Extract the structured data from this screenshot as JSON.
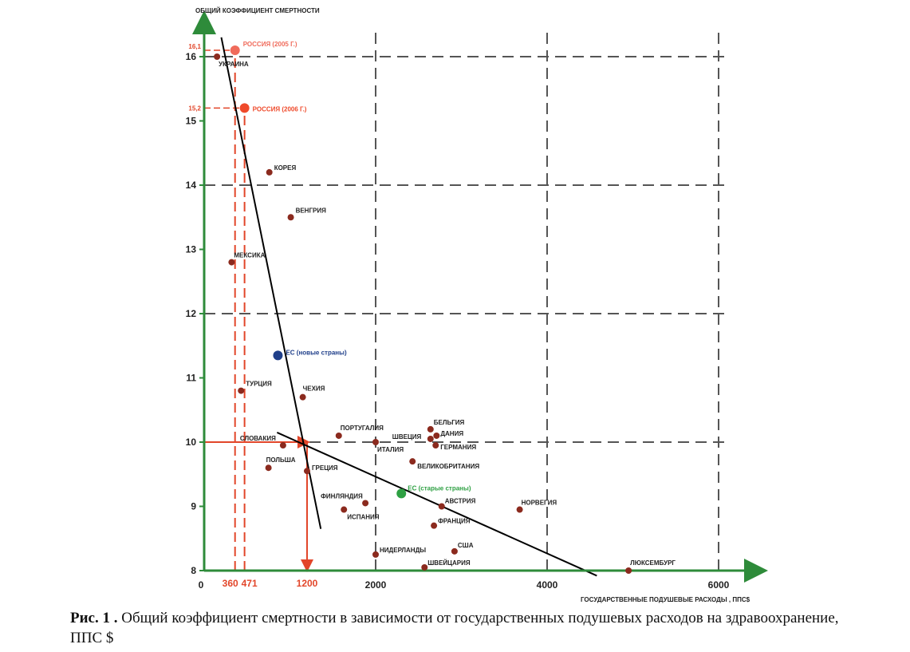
{
  "chart_data": {
    "type": "scatter",
    "ylabel": "ОБЩИЙ КОЭФФИЦИЕНТ СМЕРТНОСТИ",
    "xlabel": "ГОСУДАРСТВЕННЫЕ ПОДУШЕВЫЕ РАСХОДЫ , ППС$",
    "xlim": [
      0,
      6500
    ],
    "ylim": [
      8,
      16.5
    ],
    "x_ticks": [
      "0",
      "2000",
      "4000",
      "6000"
    ],
    "y_ticks": [
      "8",
      "9",
      "10",
      "11",
      "12",
      "13",
      "14",
      "15",
      "16"
    ],
    "grid": "dashed",
    "points": [
      {
        "label": "УКРАИНА",
        "x": 150,
        "y": 16.0
      },
      {
        "label": "КОРЕЯ",
        "x": 760,
        "y": 14.2
      },
      {
        "label": "ВЕНГРИЯ",
        "x": 1010,
        "y": 13.5
      },
      {
        "label": "МЕКСИКА",
        "x": 320,
        "y": 12.8
      },
      {
        "label": "ТУРЦИЯ",
        "x": 430,
        "y": 10.8
      },
      {
        "label": "ЧЕХИЯ",
        "x": 1150,
        "y": 10.7
      },
      {
        "label": "ПОРТУГАЛИЯ",
        "x": 1570,
        "y": 10.1
      },
      {
        "label": "ИТАЛИЯ",
        "x": 2000,
        "y": 10.0
      },
      {
        "label": "БЕЛЬГИЯ",
        "x": 2640,
        "y": 10.2
      },
      {
        "label": "ШВЕЦИЯ",
        "x": 2640,
        "y": 10.05
      },
      {
        "label": "ДАНИЯ",
        "x": 2710,
        "y": 10.1
      },
      {
        "label": "ГЕРМАНИЯ",
        "x": 2700,
        "y": 9.95
      },
      {
        "label": "СЛОВАКИЯ",
        "x": 920,
        "y": 9.95
      },
      {
        "label": "ПОЛЬША",
        "x": 750,
        "y": 9.6
      },
      {
        "label": "ГРЕЦИЯ",
        "x": 1200,
        "y": 9.55
      },
      {
        "label": "ВЕЛИКОБРИТАНИЯ",
        "x": 2430,
        "y": 9.7
      },
      {
        "label": "ФИНЛЯНДИЯ",
        "x": 1880,
        "y": 9.05
      },
      {
        "label": "ИСПАНИЯ",
        "x": 1630,
        "y": 8.95
      },
      {
        "label": "АВСТРИЯ",
        "x": 2770,
        "y": 9.0
      },
      {
        "label": "ФРАНЦИЯ",
        "x": 2680,
        "y": 8.7
      },
      {
        "label": "НОРВЕГИЯ",
        "x": 3680,
        "y": 8.95
      },
      {
        "label": "НИДЕРЛАНДЫ",
        "x": 2000,
        "y": 8.25
      },
      {
        "label": "США",
        "x": 2920,
        "y": 8.3
      },
      {
        "label": "ШВЕЙЦАРИЯ",
        "x": 2570,
        "y": 8.05
      },
      {
        "label": "ЛЮКСЕМБУРГ",
        "x": 4950,
        "y": 8.0
      }
    ],
    "highlight_points": [
      {
        "label": "РОССИЯ (2005 Г.)",
        "x": 360,
        "y": 16.1,
        "color": "#f06b5b"
      },
      {
        "label": "РОССИЯ (2006 Г.)",
        "x": 471,
        "y": 15.2,
        "color": "#ef4a2b"
      },
      {
        "label": "ЕС (новые страны)",
        "x": 860,
        "y": 11.35,
        "color": "#1f3f8a"
      },
      {
        "label": "ЕС (старые страны)",
        "x": 2300,
        "y": 9.2,
        "color": "#2ea043"
      }
    ],
    "trend_lines": [
      {
        "from": [
          200,
          16.3
        ],
        "to": [
          1360,
          8.65
        ]
      },
      {
        "from": [
          850,
          10.15
        ],
        "to": [
          4580,
          7.92
        ]
      }
    ],
    "reference": {
      "x_values": [
        {
          "x": 360,
          "label": "360"
        },
        {
          "x": 471,
          "label": "471"
        },
        {
          "x": 1200,
          "label": "1200"
        }
      ],
      "y_values": [
        {
          "y": 16.1,
          "label": "16,1"
        },
        {
          "y": 15.2,
          "label": "15,2"
        },
        {
          "y": 10,
          "label": "10"
        }
      ]
    },
    "colors": {
      "axis": "#2e8b3a",
      "grid": "#555555",
      "point": "#8b2a1e",
      "reference": "#e2462a",
      "trend": "#000000"
    }
  },
  "caption": {
    "prefix": "Рис. 1 .",
    "text": " Общий коэффициент смертности в зависимости от государственных подушевых расходов на здравоохранение, ППС $"
  }
}
